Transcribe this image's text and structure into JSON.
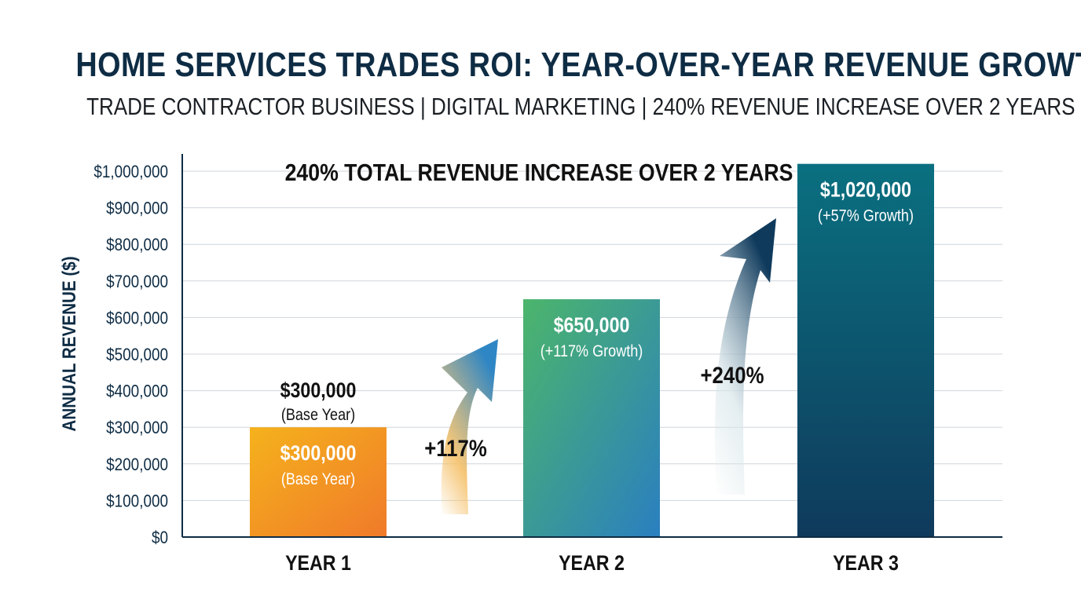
{
  "header": {
    "title": "HOME SERVICES TRADES ROI: YEAR-OVER-YEAR REVENUE GROWTH",
    "subtitle": "TRADE CONTRACTOR BUSINESS | DIGITAL MARKETING | 240% REVENUE INCREASE OVER 2 YEARS"
  },
  "chart_data": {
    "type": "bar",
    "title": "HOME SERVICES TRADES ROI: YEAR-OVER-YEAR REVENUE GROWTH",
    "subtitle": "TRADE CONTRACTOR BUSINESS | DIGITAL MARKETING | 240% REVENUE INCREASE OVER 2 YEARS",
    "annotation": "240% TOTAL REVENUE INCREASE OVER 2 YEARS",
    "xlabel": "",
    "ylabel": "ANNUAL REVENUE ($)",
    "ylim": [
      0,
      1000000
    ],
    "yticks": [
      0,
      100000,
      200000,
      300000,
      400000,
      500000,
      600000,
      700000,
      800000,
      900000,
      1000000
    ],
    "ytick_labels": [
      "$0",
      "$100,000",
      "$200,000",
      "$300,000",
      "$400,000",
      "$500,000",
      "$600,000",
      "$700,000",
      "$800,000",
      "$900,000",
      "$1,000,000"
    ],
    "grid": true,
    "categories": [
      "YEAR 1",
      "YEAR 2",
      "YEAR 3"
    ],
    "values": [
      300000,
      650000,
      1020000
    ],
    "value_labels": [
      "$300,000",
      "$650,000",
      "$1,020,000"
    ],
    "bar_notes": [
      "(Base Year)",
      "(+117% Growth)",
      "(+57% Growth)"
    ],
    "above_bar_label": {
      "value": "$300,000",
      "note": "(Base Year)"
    },
    "growth_arrows": [
      "+117%",
      "+240%"
    ],
    "colors": {
      "bar1": [
        "#f5b21c",
        "#f07a2a"
      ],
      "bar2": [
        "#4cb56b",
        "#2a7fc0"
      ],
      "bar3": [
        "#0a7080",
        "#0f3a5c"
      ],
      "arrow1": [
        "#f5c16a",
        "#2f86c4"
      ],
      "arrow2": [
        "#d8e6ea",
        "#0f3a5c"
      ],
      "axis": "#0e2c44"
    }
  }
}
